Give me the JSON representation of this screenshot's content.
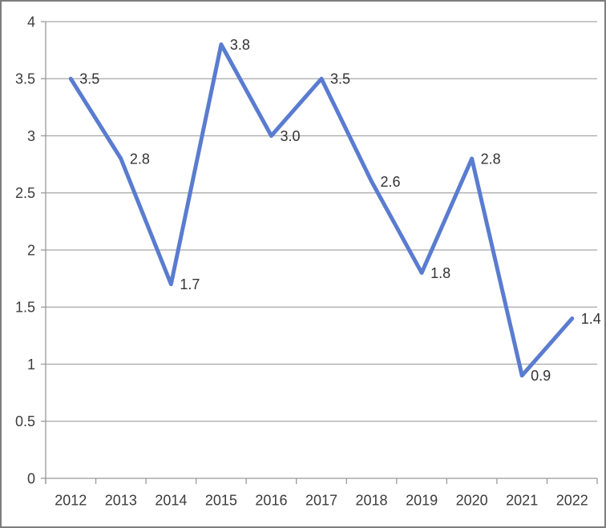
{
  "chart_data": {
    "type": "line",
    "title": "",
    "xlabel": "",
    "ylabel": "",
    "categories": [
      "2012",
      "2013",
      "2014",
      "2015",
      "2016",
      "2017",
      "2018",
      "2019",
      "2020",
      "2021",
      "2022"
    ],
    "values": [
      3.5,
      2.8,
      1.7,
      3.8,
      3.0,
      3.5,
      2.6,
      1.8,
      2.8,
      0.9,
      1.4
    ],
    "point_labels": [
      "3.5",
      "2.8",
      "1.7",
      "3.8",
      "3.0",
      "3.5",
      "2.6",
      "1.8",
      "2.8",
      "0.9",
      "1.4"
    ],
    "y_ticks": [
      0,
      0.5,
      1,
      1.5,
      2,
      2.5,
      3,
      3.5,
      4
    ],
    "y_tick_labels": [
      "0",
      "0.5",
      "1",
      "1.5",
      "2",
      "2.5",
      "3",
      "3.5",
      "4"
    ],
    "ylim": [
      0,
      4
    ],
    "grid": true,
    "legend_position": "none",
    "colors": {
      "line": "#5A7CD0",
      "gridline": "#a6a6a6",
      "axis": "#999999",
      "tick_text": "#3c3c3c",
      "data_label_text": "#333333",
      "frame_border": "#7d7d7d",
      "background": "#ffffff"
    },
    "line_width": 5
  }
}
